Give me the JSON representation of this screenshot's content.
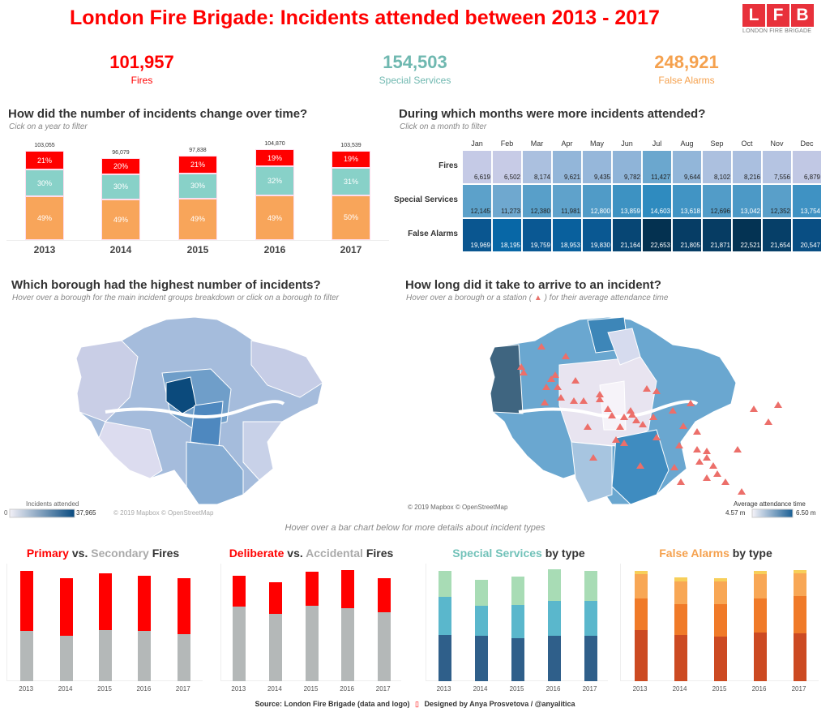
{
  "header": {
    "title": "London Fire Brigade: Incidents attended between 2013 - 2017",
    "logo_letters": [
      "L",
      "F",
      "B"
    ],
    "logo_text": "LONDON FIRE BRIGADE"
  },
  "kpis": [
    {
      "value": "101,957",
      "label": "Fires",
      "color": "#ff0000"
    },
    {
      "value": "154,503",
      "label": "Special Services",
      "color": "#6fb8b0"
    },
    {
      "value": "248,921",
      "label": "False Alarms",
      "color": "#f5a14e"
    }
  ],
  "yearly": {
    "title": "How did the number of incidents change over time?",
    "subtitle": "Cick on a year to filter",
    "chart_data": {
      "type": "bar",
      "stacked": true,
      "categories": [
        "2013",
        "2014",
        "2015",
        "2016",
        "2017"
      ],
      "totals": [
        "103,055",
        "96,079",
        "97,838",
        "104,870",
        "103,539"
      ],
      "total_values": [
        103055,
        96079,
        97838,
        104870,
        103539
      ],
      "series": [
        {
          "name": "False Alarms",
          "color": "#f8a55a",
          "pct": [
            49,
            49,
            49,
            49,
            50
          ],
          "labels": [
            "49%",
            "49%",
            "49%",
            "49%",
            "50%"
          ]
        },
        {
          "name": "Special Services",
          "color": "#88d1c8",
          "pct": [
            30,
            30,
            30,
            32,
            31
          ],
          "labels": [
            "30%",
            "30%",
            "30%",
            "32%",
            "31%"
          ]
        },
        {
          "name": "Fires",
          "color": "#ff0000",
          "pct": [
            21,
            20,
            21,
            19,
            19
          ],
          "labels": [
            "21%",
            "20%",
            "21%",
            "19%",
            "19%"
          ]
        }
      ]
    }
  },
  "monthly": {
    "title": "During which months were more incidents attended?",
    "subtitle": "Click on a month to filter",
    "chart_data": {
      "type": "heatmap",
      "columns": [
        "Jan",
        "Feb",
        "Mar",
        "Apr",
        "May",
        "Jun",
        "Jul",
        "Aug",
        "Sep",
        "Oct",
        "Nov",
        "Dec"
      ],
      "rows": [
        {
          "name": "Fires",
          "values": [
            6619,
            6502,
            8174,
            9621,
            9435,
            9782,
            11427,
            9644,
            8102,
            8216,
            7556,
            6879
          ],
          "labels": [
            "6,619",
            "6,502",
            "8,174",
            "9,621",
            "9,435",
            "9,782",
            "11,427",
            "9,644",
            "8,102",
            "8,216",
            "7,556",
            "6,879"
          ]
        },
        {
          "name": "Special Services",
          "values": [
            12145,
            11273,
            12380,
            11981,
            12800,
            13859,
            14603,
            13618,
            12696,
            13042,
            12352,
            13754
          ],
          "labels": [
            "12,145",
            "11,273",
            "12,380",
            "11,981",
            "12,800",
            "13,859",
            "14,603",
            "13,618",
            "12,696",
            "13,042",
            "12,352",
            "13,754"
          ]
        },
        {
          "name": "False Alarms",
          "values": [
            19969,
            18195,
            19759,
            18953,
            19830,
            21164,
            22653,
            21805,
            21871,
            22521,
            21654,
            20547
          ],
          "labels": [
            "19,969",
            "18,195",
            "19,759",
            "18,953",
            "19,830",
            "21,164",
            "22,653",
            "21,805",
            "21,871",
            "22,521",
            "21,654",
            "20,547"
          ]
        }
      ]
    }
  },
  "borough_map": {
    "title": "Which borough had the highest number of incidents?",
    "subtitle": "Hover over a borough for the main incident groups breakdown or click on a borough to filter",
    "legend_title": "Incidents attended",
    "legend_min": "0",
    "legend_max": "37,965",
    "credit": "© 2019 Mapbox © OpenStreetMap"
  },
  "time_map": {
    "title": "How long did it take to arrive to an incident?",
    "subtitle_pre": "Hover over a borough or a station (",
    "subtitle_post": ") for their average attendance time",
    "legend_title": "Average attendance time",
    "legend_min": "4.57 m",
    "legend_max": "6.50 m",
    "credit": "© 2019 Mapbox © OpenStreetMap"
  },
  "hover_note": "Hover over a bar chart below for more details about incident types",
  "small_charts": [
    {
      "title_parts": [
        {
          "t": "Primary",
          "c": "#ff0000"
        },
        {
          "t": " vs. ",
          "c": "#333"
        },
        {
          "t": "Secondary",
          "c": "#aaa"
        },
        {
          "t": " Fires",
          "c": "#333"
        }
      ],
      "chart_data": {
        "type": "bar",
        "stacked": true,
        "categories": [
          "2013",
          "2014",
          "2015",
          "2016",
          "2017"
        ],
        "series": [
          {
            "name": "Secondary",
            "color": "#b4b8b8",
            "values": [
              9900,
              9000,
              10100,
              9900,
              9300
            ]
          },
          {
            "name": "Primary",
            "color": "#ff0000",
            "values": [
              11800,
              11200,
              11200,
              10900,
              11000
            ]
          }
        ]
      }
    },
    {
      "title_parts": [
        {
          "t": "Deliberate",
          "c": "#ff0000"
        },
        {
          "t": " vs. ",
          "c": "#333"
        },
        {
          "t": "Accidental",
          "c": "#aaa"
        },
        {
          "t": " Fires",
          "c": "#333"
        }
      ],
      "chart_data": {
        "type": "bar",
        "stacked": true,
        "categories": [
          "2013",
          "2014",
          "2015",
          "2016",
          "2017"
        ],
        "series": [
          {
            "name": "Accidental",
            "color": "#b4b8b8",
            "values": [
              14700,
              13300,
              14900,
              14400,
              13600
            ]
          },
          {
            "name": "Deliberate",
            "color": "#ff0000",
            "values": [
              6100,
              6200,
              6700,
              7400,
              6600
            ]
          }
        ]
      }
    },
    {
      "title_parts": [
        {
          "t": "Special Services",
          "c": "#72c2b9"
        },
        {
          "t": " by type",
          "c": "#333"
        }
      ],
      "chart_data": {
        "type": "bar",
        "stacked": true,
        "categories": [
          "2013",
          "2014",
          "2015",
          "2016",
          "2017"
        ],
        "series": [
          {
            "color": "#2f5f8a",
            "values": [
              12900,
              12700,
              12000,
              12700,
              12700
            ]
          },
          {
            "color": "#5ab7cc",
            "values": [
              10900,
              8500,
              9500,
              9900,
              9900
            ]
          },
          {
            "color": "#a8dcb5",
            "values": [
              7200,
              7200,
              7900,
              8800,
              8500
            ]
          }
        ]
      }
    },
    {
      "title_parts": [
        {
          "t": "False Alarms",
          "c": "#f5a14e"
        },
        {
          "t": " by type",
          "c": "#333"
        }
      ],
      "chart_data": {
        "type": "bar",
        "stacked": true,
        "categories": [
          "2013",
          "2014",
          "2015",
          "2016",
          "2017"
        ],
        "series": [
          {
            "color": "#cc4a22",
            "values": [
              23400,
              21100,
              20400,
              22200,
              21900
            ]
          },
          {
            "color": "#f07a28",
            "values": [
              14300,
              14300,
              14700,
              15800,
              17000
            ]
          },
          {
            "color": "#f8a755",
            "values": [
              11300,
              10200,
              10600,
              10900,
              10600
            ]
          },
          {
            "color": "#f7cf5a",
            "values": [
              1500,
              1900,
              1500,
              1500,
              1500
            ]
          }
        ]
      }
    }
  ],
  "footer": {
    "source": "Source: London Fire Brigade (data and logo)",
    "designer": "Designed by Anya Prosvetova / @anyalitica"
  }
}
